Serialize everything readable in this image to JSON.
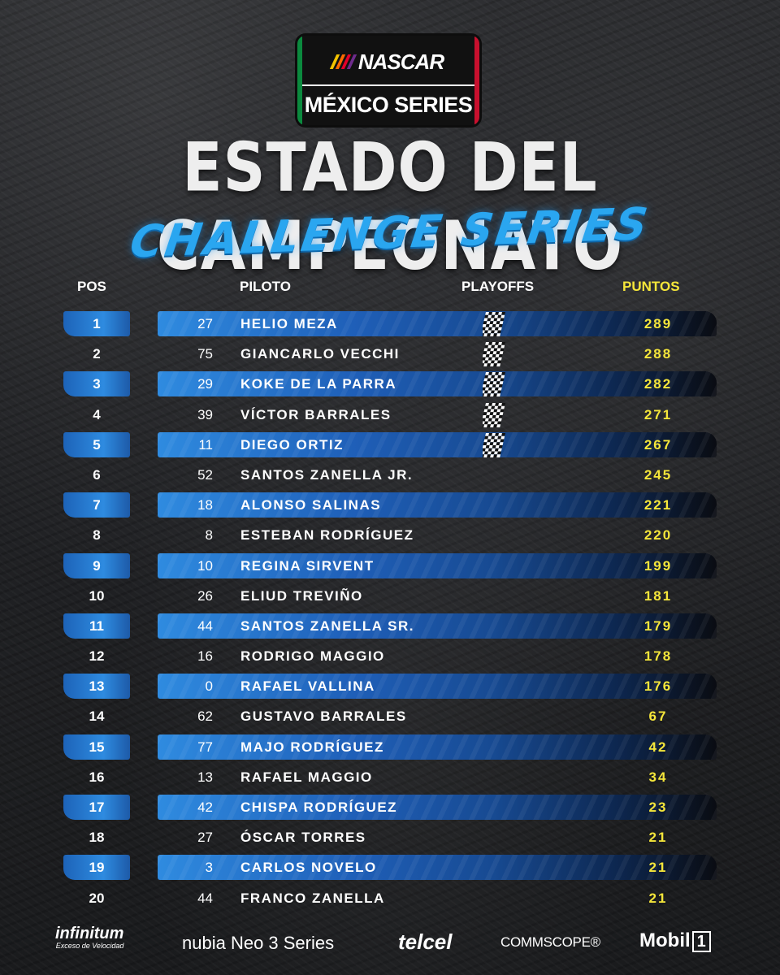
{
  "logo": {
    "brand": "NASCAR",
    "sub": "MÉXICO SERIES",
    "bar_colors": [
      "#f4c400",
      "#ff6a00",
      "#e4002b",
      "#6e2c8c"
    ],
    "flag_colors": [
      "#0b8a3e",
      "#ffffff",
      "#c8102e"
    ]
  },
  "title": "ESTADO DEL CAMPEONATO",
  "subtitle": "CHALLENGE SERIES",
  "headers": {
    "pos": "POS",
    "piloto": "PILOTO",
    "playoffs": "PLAYOFFS",
    "puntos": "PUNTOS"
  },
  "rows": [
    {
      "pos": "1",
      "num": "27",
      "name": "HELIO MEZA",
      "playoff": true,
      "pts": "289"
    },
    {
      "pos": "2",
      "num": "75",
      "name": "GIANCARLO VECCHI",
      "playoff": true,
      "pts": "288"
    },
    {
      "pos": "3",
      "num": "29",
      "name": "KOKE DE LA PARRA",
      "playoff": true,
      "pts": "282"
    },
    {
      "pos": "4",
      "num": "39",
      "name": "VÍCTOR BARRALES",
      "playoff": true,
      "pts": "271"
    },
    {
      "pos": "5",
      "num": "11",
      "name": "DIEGO ORTIZ",
      "playoff": true,
      "pts": "267"
    },
    {
      "pos": "6",
      "num": "52",
      "name": "SANTOS ZANELLA JR.",
      "playoff": false,
      "pts": "245"
    },
    {
      "pos": "7",
      "num": "18",
      "name": "ALONSO SALINAS",
      "playoff": false,
      "pts": "221"
    },
    {
      "pos": "8",
      "num": "8",
      "name": "ESTEBAN RODRÍGUEZ",
      "playoff": false,
      "pts": "220"
    },
    {
      "pos": "9",
      "num": "10",
      "name": "REGINA SIRVENT",
      "playoff": false,
      "pts": "199"
    },
    {
      "pos": "10",
      "num": "26",
      "name": "ELIUD TREVIÑO",
      "playoff": false,
      "pts": "181"
    },
    {
      "pos": "11",
      "num": "44",
      "name": "SANTOS ZANELLA SR.",
      "playoff": false,
      "pts": "179"
    },
    {
      "pos": "12",
      "num": "16",
      "name": "RODRIGO MAGGIO",
      "playoff": false,
      "pts": "178"
    },
    {
      "pos": "13",
      "num": "0",
      "name": "RAFAEL VALLINA",
      "playoff": false,
      "pts": "176"
    },
    {
      "pos": "14",
      "num": "62",
      "name": "GUSTAVO BARRALES",
      "playoff": false,
      "pts": "67"
    },
    {
      "pos": "15",
      "num": "77",
      "name": "MAJO RODRÍGUEZ",
      "playoff": false,
      "pts": "42"
    },
    {
      "pos": "16",
      "num": "13",
      "name": "RAFAEL MAGGIO",
      "playoff": false,
      "pts": "34"
    },
    {
      "pos": "17",
      "num": "42",
      "name": "CHISPA RODRÍGUEZ",
      "playoff": false,
      "pts": "23"
    },
    {
      "pos": "18",
      "num": "27",
      "name": "ÓSCAR TORRES",
      "playoff": false,
      "pts": "21"
    },
    {
      "pos": "19",
      "num": "3",
      "name": "CARLOS NOVELO",
      "playoff": false,
      "pts": "21"
    },
    {
      "pos": "20",
      "num": "44",
      "name": "FRANCO ZANELLA",
      "playoff": false,
      "pts": "21"
    }
  ],
  "colors": {
    "accent_blue": "#2e8be0",
    "points_yellow": "#f5e63a"
  },
  "sponsors": {
    "infinitum": "infinitum",
    "infinitum_tag": "Exceso de Velocidad",
    "nubia": "nubia Neo 3  Series",
    "telcel": "telcel",
    "commscope": "COMMSCOPE®",
    "mobil": "Mobil",
    "mobil_one": "1"
  }
}
